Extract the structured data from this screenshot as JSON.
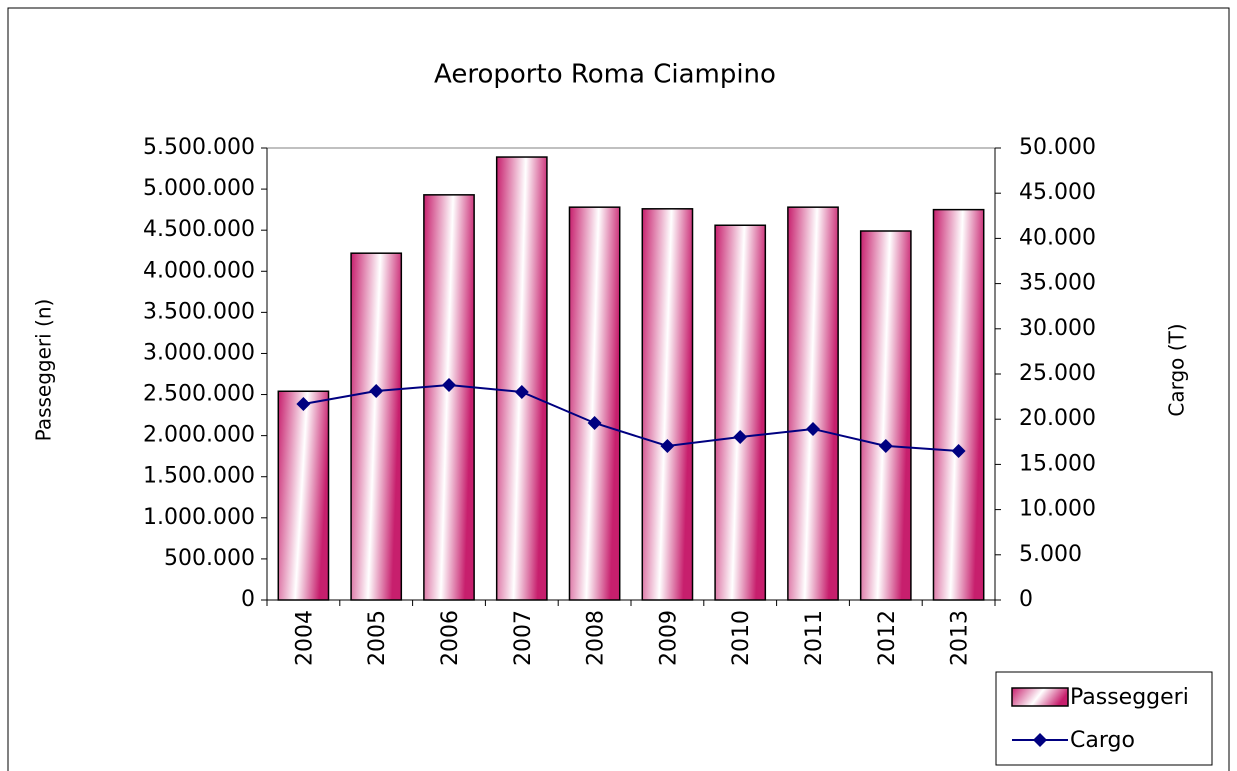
{
  "chart_data": {
    "type": "bar_line",
    "title": "Aeroporto Roma Ciampino",
    "y_label": "Passeggeri (n)",
    "y2_label": "Cargo (T)",
    "categories": [
      "2004",
      "2005",
      "2006",
      "2007",
      "2008",
      "2009",
      "2010",
      "2011",
      "2012",
      "2013"
    ],
    "series": [
      {
        "name": "Passeggeri",
        "type": "bar",
        "color": "#c71f6d",
        "values": [
          2540000,
          4220000,
          4930000,
          5390000,
          4780000,
          4760000,
          4560000,
          4780000,
          4490000,
          4750000
        ]
      },
      {
        "name": "Cargo",
        "type": "line",
        "axis": "y2",
        "color": "#000080",
        "values": [
          21680,
          23120,
          23780,
          23010,
          19580,
          17040,
          18030,
          18920,
          17040,
          16480
        ]
      }
    ],
    "ylim": [
      0,
      5500000
    ],
    "yticks": [
      0,
      {
        "value": 500000,
        "label": "500.000"
      },
      {
        "value": 1000000,
        "label": "1.000.000"
      },
      {
        "value": 1500000,
        "label": "1.500.000"
      },
      {
        "value": 2000000,
        "label": "2.000.000"
      },
      {
        "value": 2500000,
        "label": "2.500.000"
      },
      {
        "value": 3000000,
        "label": "3.000.000"
      },
      {
        "value": 3500000,
        "label": "3.500.000"
      },
      {
        "value": 4000000,
        "label": "4.000.000"
      },
      {
        "value": 4500000,
        "label": "4.500.000"
      },
      {
        "value": 5000000,
        "label": "5.000.000"
      },
      {
        "value": 5500000,
        "label": "5.500.000"
      }
    ],
    "y2lim": [
      0,
      50000
    ],
    "y2ticks": [
      0,
      {
        "value": 5000,
        "label": "5.000"
      },
      {
        "value": 10000,
        "label": "10.000"
      },
      {
        "value": 15000,
        "label": "15.000"
      },
      {
        "value": 20000,
        "label": "20.000"
      },
      {
        "value": 25000,
        "label": "25.000"
      },
      {
        "value": 30000,
        "label": "30.000"
      },
      {
        "value": 35000,
        "label": "35.000"
      },
      {
        "value": 40000,
        "label": "40.000"
      },
      {
        "value": 45000,
        "label": "45.000"
      },
      {
        "value": 50000,
        "label": "50.000"
      }
    ],
    "ytick_color": "#ff0000",
    "grid": false,
    "legend": "bottom-right"
  }
}
